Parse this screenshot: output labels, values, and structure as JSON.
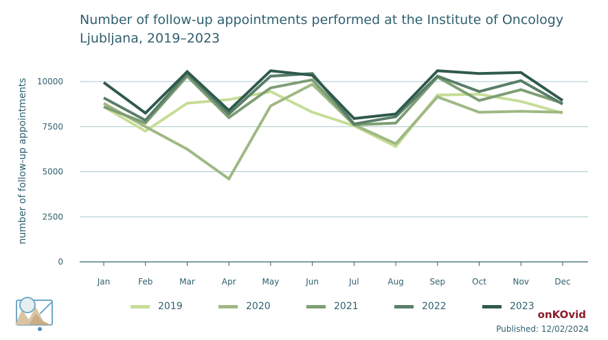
{
  "header": {
    "title": "Number of follow-up appointments performed at the Institute of Oncology Ljubljana, 2019–2023"
  },
  "footer": {
    "brand": "onKOvid",
    "published": "Published: 12/02/2024"
  },
  "colors": {
    "2019": "#c6dd96",
    "2020": "#9fb884",
    "2021": "#7e9e74",
    "2022": "#597e68",
    "2023": "#2f5a4c",
    "grid": "#a9c6cc",
    "axis_text": "#2f5f6e"
  },
  "chart_data": {
    "type": "line",
    "title": "Number of follow-up appointments performed at the Institute of Oncology Ljubljana, 2019–2023",
    "xlabel": "",
    "ylabel": "number of follow-up appointments",
    "categories": [
      "Jan",
      "Feb",
      "Mar",
      "Apr",
      "May",
      "Jun",
      "Jul",
      "Aug",
      "Sep",
      "Oct",
      "Nov",
      "Dec"
    ],
    "ylim": [
      0,
      11000
    ],
    "yticks": [
      0,
      2500,
      5000,
      7500,
      10000
    ],
    "ytick_labels": [
      "0",
      "2500",
      "5000",
      "7500",
      "10000"
    ],
    "grid": true,
    "legend": "bottom",
    "series": [
      {
        "name": "2019",
        "values": [
          8600,
          7250,
          8800,
          9000,
          9450,
          8300,
          7550,
          6400,
          9250,
          9300,
          8900,
          8250
        ]
      },
      {
        "name": "2020",
        "values": [
          8800,
          7500,
          6250,
          4600,
          8650,
          9850,
          7600,
          6550,
          9150,
          8300,
          8350,
          8300
        ]
      },
      {
        "name": "2021",
        "values": [
          8600,
          7700,
          10300,
          8000,
          9650,
          10100,
          7600,
          7700,
          10250,
          8950,
          9550,
          8800
        ]
      },
      {
        "name": "2022",
        "values": [
          9100,
          7850,
          10450,
          8200,
          10300,
          10450,
          7650,
          8050,
          10300,
          9450,
          10050,
          8750
        ]
      },
      {
        "name": "2023",
        "values": [
          9950,
          8250,
          10550,
          8400,
          10600,
          10350,
          7950,
          8200,
          10600,
          10450,
          10500,
          8950
        ]
      }
    ]
  }
}
